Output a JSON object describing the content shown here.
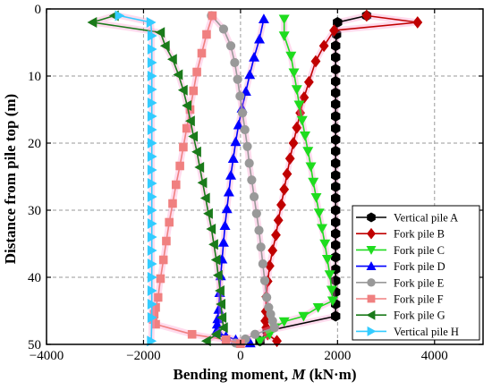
{
  "chart_data": {
    "type": "line",
    "title": "",
    "xlabel": "Bending moment, M (kN·m)",
    "xlabel_parts": {
      "prefix": "Bending moment, ",
      "symbol": "M",
      "suffix": " (kN·m)"
    },
    "ylabel": "Distance from pile top (m)",
    "xlim": [
      -4000,
      5000
    ],
    "ylim": [
      50,
      0
    ],
    "y_inverted": true,
    "x_ticks": [
      -4000,
      -2000,
      0,
      2000,
      4000
    ],
    "x_tick_labels": [
      "−4000",
      "−2000",
      "0",
      "2000",
      "4000"
    ],
    "y_ticks": [
      0,
      10,
      20,
      30,
      40,
      50
    ],
    "y_tick_labels": [
      "0",
      "10",
      "20",
      "30",
      "40",
      "50"
    ],
    "grid": true,
    "legend_position": "bottom-right",
    "series": [
      {
        "name": "Vertical pile A",
        "color": "#000000",
        "marker": "hexagon",
        "x": [
          2600,
          2000,
          1980,
          1960,
          1960,
          1960,
          1960,
          1960,
          1960,
          1960,
          1960,
          1960,
          1960,
          1960,
          1960,
          1960,
          1960,
          1960,
          1960,
          1960,
          1960,
          1960,
          1960,
          1960,
          1960,
          1960,
          1960,
          550,
          400
        ],
        "y": [
          1,
          2,
          3.8,
          5.5,
          7.2,
          9,
          10.8,
          12.5,
          14.2,
          16,
          17.8,
          19.5,
          21.2,
          23,
          24.8,
          26.5,
          28.2,
          30,
          31.8,
          33.5,
          35.2,
          37,
          38.8,
          40.5,
          42.2,
          44,
          45.8,
          48,
          49.5
        ]
      },
      {
        "name": "Fork pile B",
        "color": "#c00000",
        "marker": "diamond",
        "x": [
          2600,
          3650,
          1930,
          1720,
          1550,
          1410,
          1310,
          1230,
          1160,
          1090,
          1020,
          960,
          900,
          840,
          780,
          730,
          660,
          600,
          560,
          530,
          520,
          510,
          530,
          560,
          750
        ],
        "y": [
          1,
          2,
          3.2,
          5.5,
          7.8,
          10.9,
          13.2,
          15.5,
          17.7,
          20,
          22.3,
          24.6,
          26.9,
          29.2,
          31.5,
          33.7,
          36,
          38.3,
          40.6,
          42.9,
          45.1,
          46.5,
          47.5,
          48.5,
          49.5
        ]
      },
      {
        "name": "Fork pile C",
        "color": "#1fdc1f",
        "marker": "triangle-down",
        "x": [
          900,
          900,
          1040,
          1100,
          1160,
          1210,
          1270,
          1330,
          1390,
          1450,
          1500,
          1560,
          1620,
          1680,
          1740,
          1790,
          1840,
          1880,
          1900,
          1600,
          1300,
          900,
          700,
          600,
          400
        ],
        "y": [
          1.5,
          4,
          7,
          9.5,
          12,
          14.3,
          16.6,
          18.9,
          21.2,
          23.5,
          25.8,
          28.1,
          30.4,
          32.7,
          35,
          37.3,
          39.6,
          41.9,
          43.5,
          44.5,
          45.8,
          46.6,
          47.5,
          48.5,
          49.5
        ]
      },
      {
        "name": "Fork pile D",
        "color": "#0000ff",
        "marker": "triangle-up",
        "x": [
          480,
          390,
          280,
          190,
          110,
          30,
          -40,
          -100,
          -150,
          -200,
          -240,
          -280,
          -320,
          -350,
          -380,
          -410,
          -430,
          -450,
          -470,
          -480,
          -480,
          -450,
          -300,
          -100,
          200
        ],
        "y": [
          1.5,
          4.5,
          7.2,
          9.8,
          12.3,
          14.8,
          17.3,
          19.8,
          22.3,
          24.8,
          27.3,
          29.8,
          32.3,
          34.8,
          37.3,
          39.8,
          42.3,
          44.8,
          46.2,
          47,
          47.8,
          48.3,
          48.8,
          49.3,
          49.8
        ]
      },
      {
        "name": "Fork pile E",
        "color": "#999999",
        "marker": "circle",
        "x": [
          -600,
          -350,
          -200,
          -120,
          -60,
          -10,
          40,
          90,
          140,
          180,
          230,
          280,
          330,
          380,
          420,
          460,
          500,
          540,
          580,
          620,
          660,
          700,
          300,
          100,
          -100
        ],
        "y": [
          1,
          3,
          5.5,
          8,
          10.5,
          13,
          15.5,
          18,
          20.5,
          23,
          25.5,
          28,
          30.5,
          33,
          35.5,
          38,
          40.5,
          43,
          44.5,
          45.5,
          46.5,
          47.5,
          48.5,
          49.2,
          49.8
        ]
      },
      {
        "name": "Fork pile F",
        "color": "#f08080",
        "marker": "square",
        "x": [
          -580,
          -700,
          -800,
          -900,
          -970,
          -1040,
          -1110,
          -1180,
          -1250,
          -1330,
          -1400,
          -1470,
          -1530,
          -1590,
          -1650,
          -1700,
          -1750,
          -1780,
          -1800,
          -1750,
          -1000,
          -300,
          0
        ],
        "y": [
          1,
          3.8,
          6.6,
          9.4,
          12.2,
          15,
          17.8,
          20.6,
          23.4,
          26.2,
          29,
          31.8,
          34.6,
          37.4,
          40.2,
          43,
          44.5,
          45.5,
          46.3,
          47,
          48.5,
          49.3,
          49.9
        ]
      },
      {
        "name": "Fork pile G",
        "color": "#1a7a1a",
        "marker": "triangle-left",
        "x": [
          -2600,
          -3050,
          -1650,
          -1550,
          -1400,
          -1280,
          -1180,
          -1100,
          -1030,
          -970,
          -900,
          -840,
          -780,
          -720,
          -660,
          -600,
          -550,
          -500,
          -460,
          -420,
          -400,
          -380,
          -350,
          -500,
          -700
        ],
        "y": [
          1,
          2,
          3.5,
          5.5,
          7.5,
          9.8,
          12.1,
          14.4,
          16.7,
          19,
          21.3,
          23.6,
          25.9,
          28.2,
          30.5,
          32.8,
          35.1,
          37.4,
          39.7,
          42,
          44,
          46,
          47.5,
          48.5,
          49.5
        ]
      },
      {
        "name": "Vertical pile H",
        "color": "#33ccff",
        "marker": "triangle-right",
        "x": [
          -2500,
          -1850,
          -1830,
          -1830,
          -1830,
          -1830,
          -1830,
          -1830,
          -1830,
          -1830,
          -1830,
          -1830,
          -1830,
          -1830,
          -1830,
          -1830,
          -1830,
          -1830,
          -1830,
          -1830,
          -1830,
          -1830,
          -1830,
          -1830,
          -1840
        ],
        "y": [
          1,
          2,
          4,
          6,
          8,
          10,
          12,
          14,
          16,
          18,
          20,
          22,
          24,
          26,
          28,
          30,
          32,
          34,
          36,
          38,
          40,
          42,
          44,
          46,
          49.5
        ]
      }
    ]
  }
}
